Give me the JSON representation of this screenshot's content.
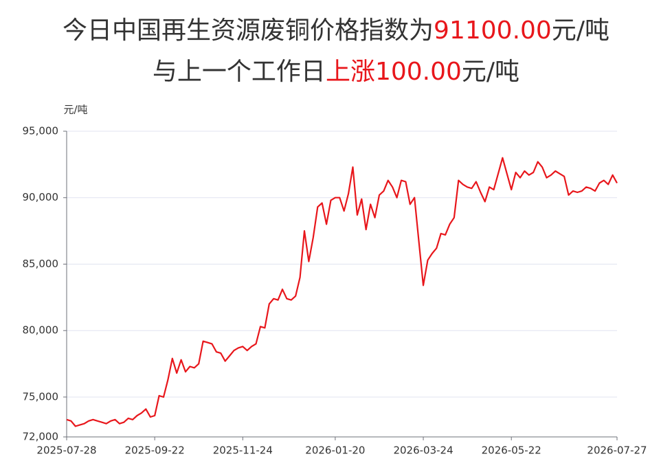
{
  "chart_data": {
    "type": "line",
    "title_lines": [
      [
        {
          "text": "今日中国再生资源废铜价格指数为",
          "color": "#333333"
        },
        {
          "text": "91100.00",
          "color": "#e8161b"
        },
        {
          "text": "元/吨",
          "color": "#333333"
        }
      ],
      [
        {
          "text": "与上一个工作日",
          "color": "#333333"
        },
        {
          "text": "上涨",
          "color": "#e8161b"
        },
        {
          "text": "100.00",
          "color": "#e8161b"
        },
        {
          "text": "元/吨",
          "color": "#333333"
        }
      ]
    ],
    "y_label": "元/吨",
    "categories": [
      "2025-07-28",
      null,
      null,
      null,
      null,
      null,
      null,
      null,
      null,
      null,
      null,
      null,
      null,
      null,
      null,
      null,
      null,
      null,
      null,
      null,
      "2025-09-22",
      null,
      null,
      null,
      null,
      null,
      null,
      null,
      null,
      null,
      null,
      null,
      null,
      null,
      null,
      null,
      null,
      null,
      null,
      null,
      "2025-11-24",
      null,
      null,
      null,
      null,
      null,
      null,
      null,
      null,
      null,
      null,
      null,
      null,
      null,
      null,
      null,
      null,
      null,
      null,
      null,
      null,
      "2026-01-20",
      null,
      null,
      null,
      null,
      null,
      null,
      null,
      null,
      null,
      null,
      null,
      null,
      null,
      null,
      null,
      null,
      null,
      null,
      null,
      "2026-03-24",
      null,
      null,
      null,
      null,
      null,
      null,
      null,
      null,
      null,
      null,
      null,
      null,
      null,
      null,
      null,
      null,
      null,
      null,
      null,
      "2026-05-22",
      null,
      null,
      null,
      null,
      null,
      null,
      null,
      null,
      null,
      null,
      null,
      null,
      null,
      null,
      null,
      null,
      null,
      null,
      null,
      null,
      null,
      null,
      null,
      "2026-07-27"
    ],
    "series": [
      {
        "color": "#e8161b",
        "values": [
          73300,
          73200,
          72800,
          72900,
          73000,
          73200,
          73300,
          73200,
          73100,
          73000,
          73200,
          73300,
          73000,
          73100,
          73400,
          73300,
          73600,
          73800,
          74100,
          73500,
          73600,
          75100,
          75000,
          76300,
          77900,
          76800,
          77800,
          76900,
          77300,
          77200,
          77500,
          79200,
          79100,
          79000,
          78400,
          78300,
          77700,
          78100,
          78500,
          78700,
          78800,
          78500,
          78800,
          79000,
          80300,
          80200,
          82000,
          82400,
          82300,
          83100,
          82400,
          82300,
          82600,
          84000,
          87500,
          85200,
          87000,
          89300,
          89600,
          88000,
          89800,
          90000,
          90000,
          89000,
          90300,
          92300,
          88700,
          89900,
          87600,
          89500,
          88500,
          90200,
          90500,
          91300,
          90800,
          90000,
          91300,
          91200,
          89500,
          90000,
          86700,
          83400,
          85300,
          85800,
          86200,
          87300,
          87200,
          88000,
          88500,
          91300,
          91000,
          90800,
          90700,
          91200,
          90400,
          89700,
          90800,
          90600,
          91800,
          93000,
          91800,
          90600,
          91900,
          91500,
          92000,
          91700,
          91900,
          92700,
          92300,
          91500,
          91700,
          92000,
          91800,
          91600,
          90200,
          90500,
          90400,
          90500,
          90800,
          90700,
          90500,
          91100,
          91300,
          91000,
          91700,
          91100
        ]
      }
    ],
    "ylim": [
      72000,
      95000
    ],
    "yticks": [
      {
        "value": 72000,
        "label": "72,000"
      },
      {
        "value": 75000,
        "label": "75,000"
      },
      {
        "value": 80000,
        "label": "80,000"
      },
      {
        "value": 85000,
        "label": "85,000"
      },
      {
        "value": 90000,
        "label": "90,000"
      },
      {
        "value": 95000,
        "label": "95,000"
      }
    ],
    "grid": true
  }
}
